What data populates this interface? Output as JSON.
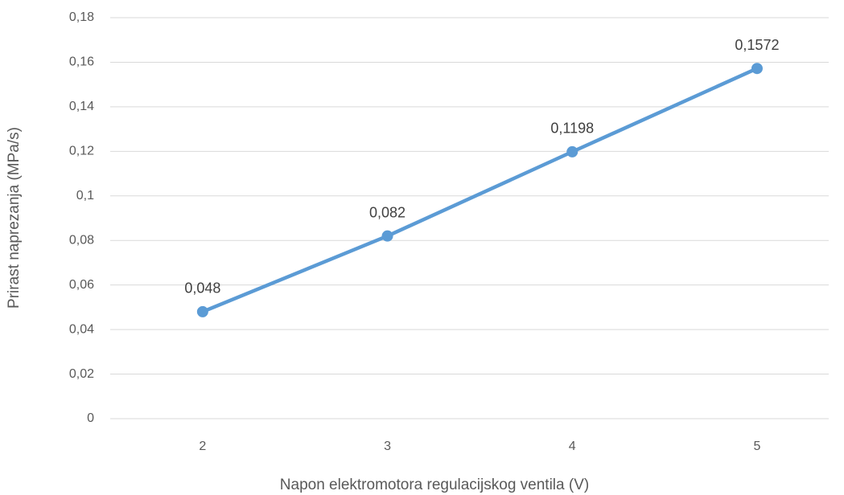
{
  "chart_data": {
    "type": "line",
    "xlabel": "Napon elektromotora regulacijskog ventila (V)",
    "ylabel": "Prirast naprezanja (MPa/s)",
    "categories": [
      "2",
      "3",
      "4",
      "5"
    ],
    "values": [
      0.048,
      0.082,
      0.1198,
      0.1572
    ],
    "value_labels": [
      "0,048",
      "0,082",
      "0,1198",
      "0,1572"
    ],
    "color": "#5b9bd5",
    "ylim": [
      0,
      0.18
    ],
    "yticks": [
      0,
      {
        "value": 0.02,
        "label": "0,02"
      },
      {
        "value": 0.04,
        "label": "0,04"
      },
      {
        "value": 0.06,
        "label": "0,06"
      },
      {
        "value": 0.08,
        "label": "0,08"
      },
      {
        "value": 0.1,
        "label": "0,1"
      },
      {
        "value": 0.12,
        "label": "0,12"
      },
      {
        "value": 0.14,
        "label": "0,14"
      },
      {
        "value": 0.16,
        "label": "0,16"
      },
      {
        "value": 0.18,
        "label": "0,18"
      }
    ],
    "grid": true
  }
}
